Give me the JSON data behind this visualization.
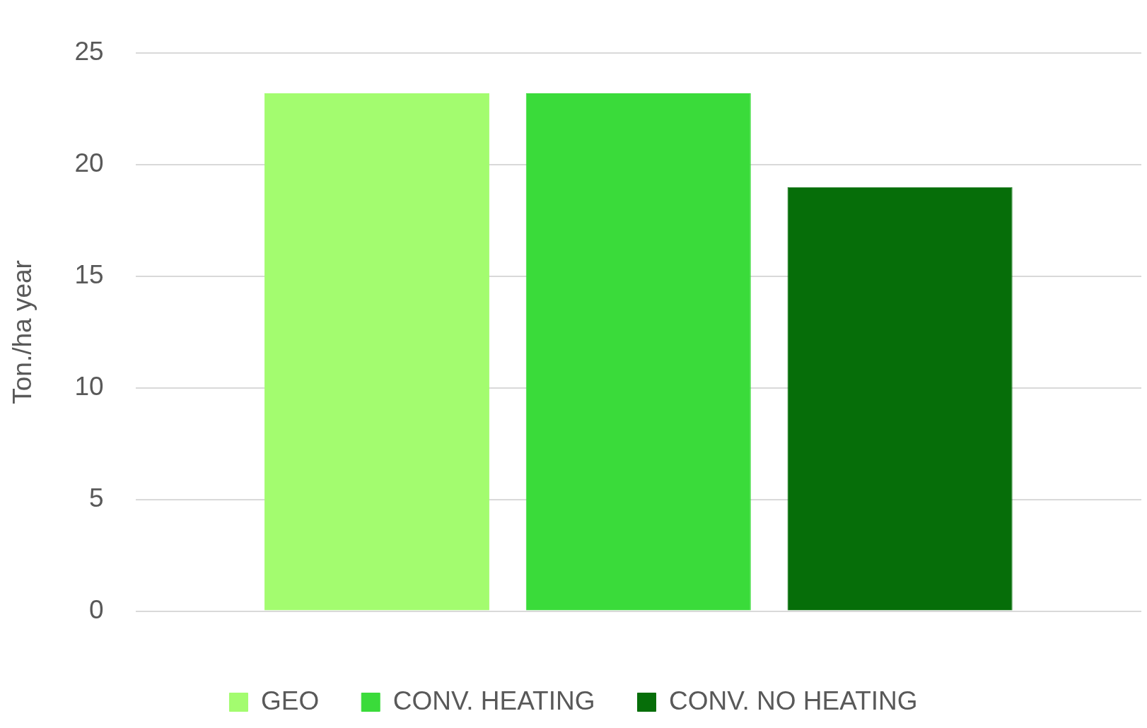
{
  "chart_data": {
    "type": "bar",
    "ylabel": "Ton./ha year",
    "categories": [
      null
    ],
    "series": [
      {
        "name": "GEO",
        "color": "#a3fc6f",
        "values": [
          23.2
        ]
      },
      {
        "name": "CONV. HEATING",
        "color": "#3adb3a",
        "values": [
          23.2
        ]
      },
      {
        "name": "CONV. NO HEATING",
        "color": "#066e09",
        "values": [
          19.0
        ]
      }
    ],
    "ylim": [
      0,
      25
    ],
    "yticks": [
      0,
      5,
      10,
      15,
      20,
      25
    ],
    "grid": "y",
    "legend": "bottom"
  }
}
